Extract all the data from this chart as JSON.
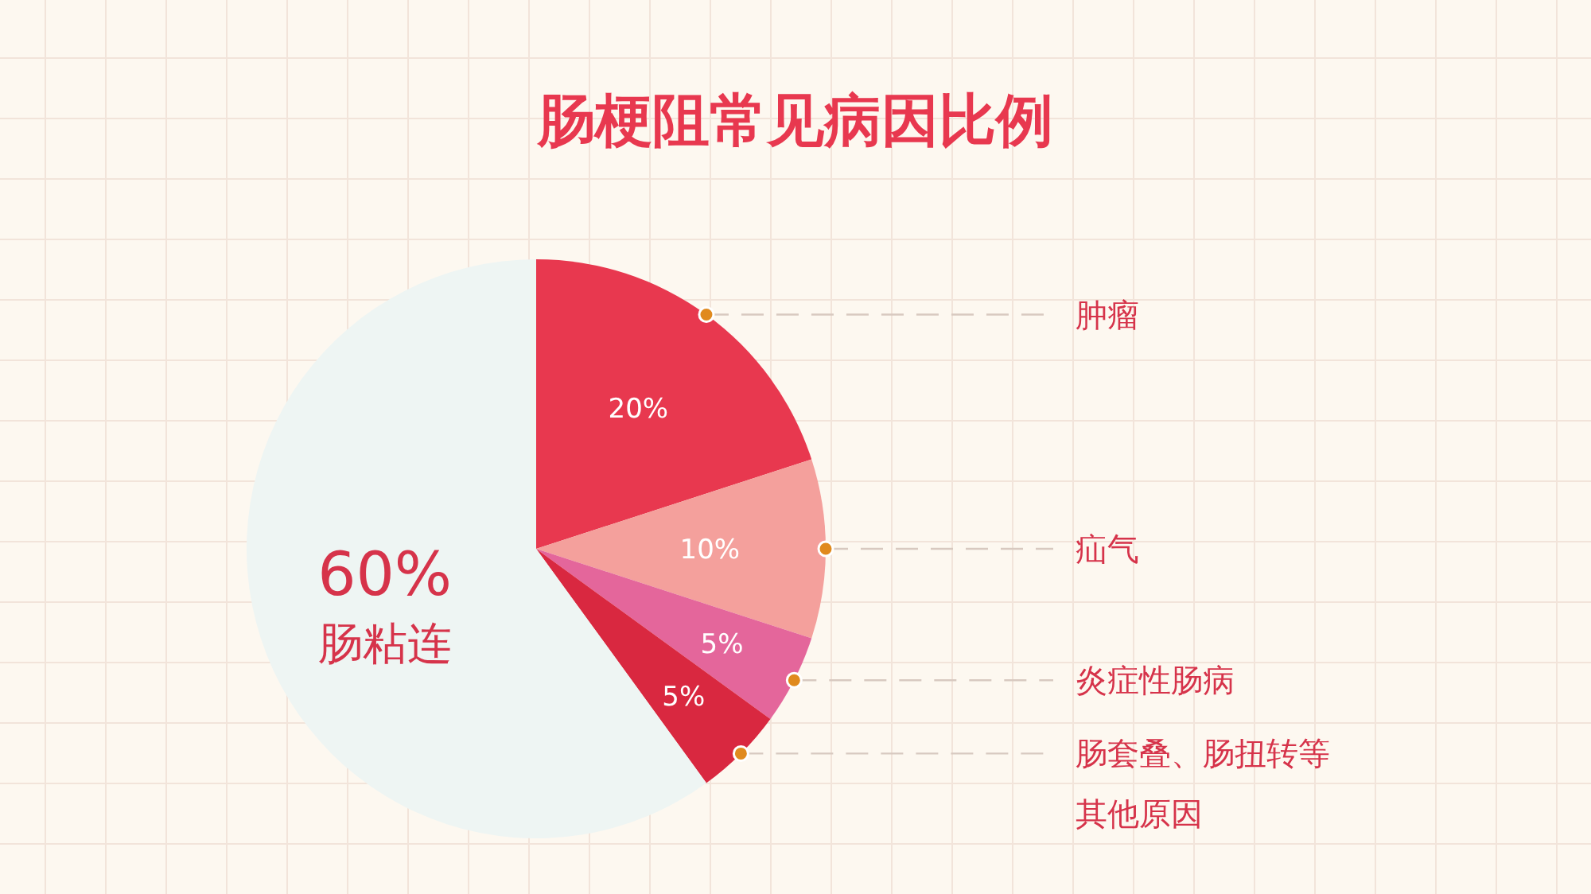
{
  "chart_data": {
    "type": "pie",
    "title": "肠梗阻常见病因比例",
    "categories": [
      "肿瘤",
      "疝气",
      "炎症性肠病",
      "肠套叠、肠扭转等其他原因",
      "肠粘连"
    ],
    "values": [
      20,
      10,
      5,
      5,
      60
    ],
    "value_labels": [
      "20%",
      "10%",
      "5%",
      "5%",
      "60%"
    ],
    "colors": [
      "#e8384f",
      "#f4a09c",
      "#e4669b",
      "#d92840",
      "#eef5f3"
    ]
  }
}
